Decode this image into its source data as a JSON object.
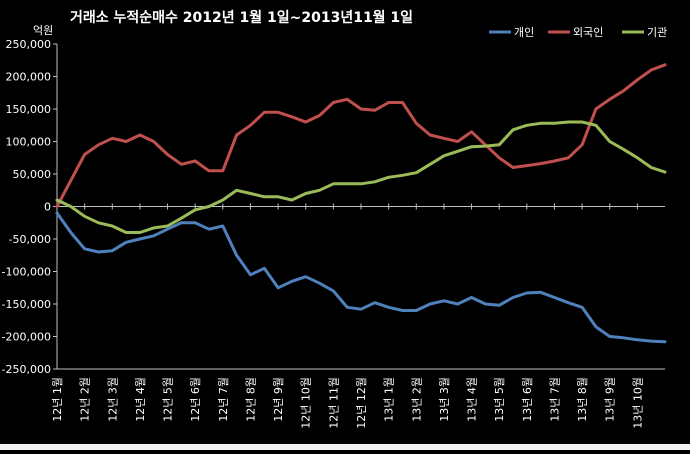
{
  "chart_data": {
    "type": "line",
    "title": "거래소 누적순매수 2012년 1월 1일~2013년11월 1일",
    "unit_label": "억원",
    "xlabel": "",
    "ylabel": "",
    "ylim": [
      -250000,
      250000
    ],
    "y_ticks": [
      250000,
      200000,
      150000,
      100000,
      50000,
      0,
      -50000,
      -100000,
      -150000,
      -200000,
      -250000
    ],
    "y_tick_labels": [
      "250,000",
      "200,000",
      "150,000",
      "100,000",
      "50,000",
      "0",
      "-50,000",
      "-100,000",
      "-150,000",
      "-200,000",
      "-250,000"
    ],
    "x_tick_labels": [
      "12년 1월",
      "12년 2월",
      "12년 3월",
      "12년 4월",
      "12년 5월",
      "12년 6월",
      "12년 7월",
      "12년 8월",
      "12년 9월",
      "12년 10월",
      "12년 11월",
      "12년 12월",
      "13년 1월",
      "13년 2월",
      "13년 3월",
      "13년 4월",
      "13년 5월",
      "13년 6월",
      "13년 7월",
      "13년 8월",
      "13년 9월",
      "13년 10월"
    ],
    "grid": false,
    "legend_position": "top-right",
    "x": [
      0,
      0.5,
      1,
      1.5,
      2,
      2.5,
      3,
      3.5,
      4,
      4.5,
      5,
      5.5,
      6,
      6.5,
      7,
      7.5,
      8,
      8.5,
      9,
      9.5,
      10,
      10.5,
      11,
      11.5,
      12,
      12.5,
      13,
      13.5,
      14,
      14.5,
      15,
      15.5,
      16,
      16.5,
      17,
      17.5,
      18,
      18.5,
      19,
      19.5,
      20,
      20.5,
      21,
      21.5,
      22
    ],
    "series": [
      {
        "name": "개인",
        "color": "#4f81bd",
        "values": [
          -10000,
          -40000,
          -65000,
          -70000,
          -68000,
          -55000,
          -50000,
          -45000,
          -35000,
          -25000,
          -25000,
          -35000,
          -30000,
          -75000,
          -105000,
          -95000,
          -125000,
          -115000,
          -108000,
          -118000,
          -130000,
          -155000,
          -158000,
          -148000,
          -155000,
          -160000,
          -160000,
          -150000,
          -145000,
          -150000,
          -140000,
          -150000,
          -152000,
          -140000,
          -133000,
          -132000,
          -140000,
          -148000,
          -155000,
          -185000,
          -200000,
          -202000,
          -205000,
          -207000,
          -208000
        ]
      },
      {
        "name": "외국인",
        "color": "#c0504d",
        "values": [
          0,
          40000,
          80000,
          95000,
          105000,
          100000,
          110000,
          100000,
          80000,
          65000,
          70000,
          55000,
          55000,
          110000,
          125000,
          145000,
          145000,
          138000,
          130000,
          140000,
          160000,
          165000,
          150000,
          148000,
          160000,
          160000,
          128000,
          110000,
          105000,
          100000,
          115000,
          95000,
          75000,
          60000,
          63000,
          66000,
          70000,
          75000,
          95000,
          150000,
          165000,
          178000,
          195000,
          210000,
          218000
        ]
      },
      {
        "name": "기관",
        "color": "#9bbb59",
        "values": [
          10000,
          0,
          -15000,
          -25000,
          -30000,
          -40000,
          -40000,
          -33000,
          -30000,
          -18000,
          -5000,
          0,
          10000,
          25000,
          20000,
          15000,
          15000,
          10000,
          20000,
          25000,
          35000,
          35000,
          35000,
          38000,
          45000,
          48000,
          52000,
          65000,
          78000,
          85000,
          92000,
          93000,
          95000,
          118000,
          125000,
          128000,
          128000,
          130000,
          130000,
          125000,
          100000,
          88000,
          75000,
          60000,
          53000
        ]
      }
    ]
  }
}
